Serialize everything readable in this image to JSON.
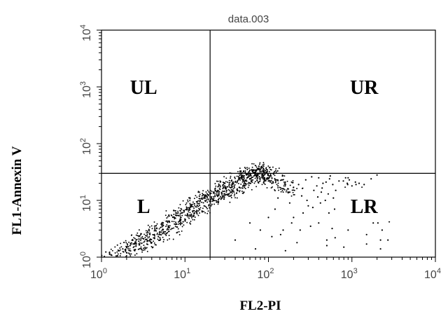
{
  "chart_data": {
    "type": "scatter",
    "title": "data.003",
    "xlabel": "FL2-PI",
    "ylabel": "FL1-Annexin V",
    "xscale": "log",
    "yscale": "log",
    "xlim": [
      1,
      10000
    ],
    "ylim": [
      1,
      10000
    ],
    "x_ticks": [
      {
        "base": "10",
        "exp": "0"
      },
      {
        "base": "10",
        "exp": "1"
      },
      {
        "base": "10",
        "exp": "2"
      },
      {
        "base": "10",
        "exp": "3"
      },
      {
        "base": "10",
        "exp": "4"
      }
    ],
    "y_ticks": [
      {
        "base": "10",
        "exp": "0"
      },
      {
        "base": "10",
        "exp": "1"
      },
      {
        "base": "10",
        "exp": "2"
      },
      {
        "base": "10",
        "exp": "3"
      },
      {
        "base": "10",
        "exp": "4"
      }
    ],
    "gates": {
      "x": 20,
      "y": 30
    },
    "quadrant_labels": [
      {
        "text": "UL",
        "x": 3.2,
        "y": 1000
      },
      {
        "text": "UR",
        "x": 1400,
        "y": 1000
      },
      {
        "text": "L",
        "x": 3.2,
        "y": 8
      },
      {
        "text": "LR",
        "x": 1400,
        "y": 8
      }
    ],
    "marker_color": "#000000",
    "grid": false,
    "series": [
      {
        "description": "dense diagonal cluster of events",
        "points": [
          [
            1.3,
            1.1
          ],
          [
            1.6,
            1.3
          ],
          [
            2,
            1.5
          ],
          [
            2.4,
            1.7
          ],
          [
            2.8,
            1.9
          ],
          [
            3.2,
            2.1
          ],
          [
            3.8,
            2.5
          ],
          [
            4.5,
            2.9
          ],
          [
            5.5,
            3.6
          ],
          [
            6.5,
            4.3
          ],
          [
            7.5,
            5
          ],
          [
            9,
            6
          ],
          [
            10.5,
            7
          ],
          [
            12,
            8
          ],
          [
            14,
            9.5
          ],
          [
            16,
            11
          ],
          [
            18,
            12
          ],
          [
            20,
            13
          ],
          [
            23,
            15
          ],
          [
            26,
            16
          ],
          [
            30,
            18
          ],
          [
            34,
            19
          ],
          [
            40,
            21
          ],
          [
            45,
            24
          ],
          [
            50,
            26
          ],
          [
            55,
            28
          ],
          [
            60,
            30
          ],
          [
            65,
            32
          ],
          [
            70,
            34
          ],
          [
            80,
            30
          ],
          [
            90,
            25
          ],
          [
            100,
            22
          ],
          [
            2,
            1.2
          ],
          [
            3,
            1.4
          ],
          [
            4,
            1.8
          ],
          [
            5,
            2.2
          ],
          [
            6,
            2.6
          ],
          [
            8,
            3.4
          ],
          [
            10,
            4.5
          ],
          [
            13,
            6
          ],
          [
            17,
            8
          ],
          [
            22,
            10
          ],
          [
            28,
            12
          ],
          [
            35,
            14
          ],
          [
            45,
            17
          ],
          [
            60,
            20
          ],
          [
            1.5,
            1.05
          ],
          [
            2.5,
            1.3
          ],
          [
            3.5,
            1.7
          ],
          [
            4.8,
            2.3
          ],
          [
            7,
            3.2
          ],
          [
            9.5,
            4.2
          ],
          [
            12.5,
            5.2
          ],
          [
            16,
            6.5
          ],
          [
            21,
            8.5
          ],
          [
            27,
            10.5
          ],
          [
            33,
            13
          ],
          [
            42,
            15.5
          ],
          [
            52,
            18
          ],
          [
            62,
            22
          ],
          [
            72,
            26
          ],
          [
            85,
            28
          ],
          [
            95,
            24
          ],
          [
            110,
            20
          ],
          [
            130,
            18
          ],
          [
            150,
            16
          ],
          [
            180,
            14
          ],
          [
            2.2,
            1.6
          ],
          [
            3.4,
            2.4
          ],
          [
            4.6,
            3.2
          ],
          [
            6.2,
            4.1
          ],
          [
            8.4,
            5.4
          ],
          [
            11,
            6.8
          ],
          [
            14,
            8.2
          ],
          [
            19,
            10.5
          ],
          [
            24,
            13
          ],
          [
            31,
            16
          ],
          [
            38,
            20
          ],
          [
            48,
            24
          ],
          [
            58,
            27
          ],
          [
            68,
            31
          ],
          [
            76,
            35
          ],
          [
            88,
            33
          ],
          [
            105,
            27
          ],
          [
            125,
            23
          ],
          [
            160,
            19
          ],
          [
            200,
            17
          ],
          [
            1.8,
            1.4
          ],
          [
            2.6,
            2
          ],
          [
            3.6,
            2.7
          ],
          [
            5.2,
            3.8
          ],
          [
            7.2,
            5.1
          ],
          [
            9.8,
            6.6
          ],
          [
            13,
            8.7
          ],
          [
            17.5,
            11
          ],
          [
            22,
            14
          ],
          [
            29,
            17
          ],
          [
            36,
            22
          ],
          [
            44,
            26
          ],
          [
            54,
            29
          ],
          [
            64,
            33
          ],
          [
            74,
            36
          ],
          [
            82,
            38
          ],
          [
            96,
            32
          ],
          [
            115,
            29
          ]
        ]
      },
      {
        "description": "scattered events",
        "points": [
          [
            150,
            3
          ],
          [
            200,
            5
          ],
          [
            300,
            8
          ],
          [
            400,
            4
          ],
          [
            500,
            2
          ],
          [
            700,
            6
          ],
          [
            900,
            3
          ],
          [
            1200,
            5
          ],
          [
            1500,
            2.5
          ],
          [
            1800,
            4
          ],
          [
            2000,
            9
          ],
          [
            2200,
            2
          ],
          [
            250,
            12
          ],
          [
            350,
            15
          ],
          [
            450,
            20
          ],
          [
            600,
            11
          ],
          [
            800,
            14
          ],
          [
            1000,
            18
          ],
          [
            1300,
            10
          ],
          [
            1600,
            13
          ],
          [
            2100,
            7
          ],
          [
            2300,
            3
          ],
          [
            400,
            25
          ],
          [
            550,
            27
          ],
          [
            700,
            22
          ],
          [
            900,
            25
          ],
          [
            1100,
            21
          ],
          [
            1400,
            19
          ],
          [
            1700,
            24
          ],
          [
            2000,
            28
          ],
          [
            120,
            7
          ],
          [
            180,
            9
          ],
          [
            260,
            6
          ],
          [
            320,
            3.5
          ],
          [
            420,
            9
          ],
          [
            520,
            13
          ],
          [
            620,
            7
          ],
          [
            750,
            10
          ],
          [
            950,
            8
          ],
          [
            1150,
            12
          ],
          [
            1350,
            6
          ],
          [
            1550,
            15
          ],
          [
            1750,
            9
          ],
          [
            1950,
            11
          ],
          [
            2150,
            14
          ],
          [
            2400,
            5
          ],
          [
            2500,
            8
          ],
          [
            2600,
            12
          ],
          [
            130,
            11
          ],
          [
            170,
            16
          ],
          [
            230,
            19
          ],
          [
            280,
            23
          ],
          [
            330,
            26
          ],
          [
            380,
            18
          ],
          [
            430,
            14
          ],
          [
            480,
            10
          ],
          [
            530,
            6
          ],
          [
            580,
            3.2
          ],
          [
            630,
            2.2
          ],
          [
            680,
            4.5
          ],
          [
            730,
            8.5
          ],
          [
            780,
            12.5
          ],
          [
            830,
            17
          ],
          [
            880,
            20
          ],
          [
            930,
            23
          ],
          [
            980,
            16
          ],
          [
            1050,
            11
          ],
          [
            1100,
            7
          ],
          [
            1250,
            9
          ],
          [
            1450,
            11
          ],
          [
            1650,
            8
          ],
          [
            1850,
            6
          ],
          [
            2050,
            4
          ],
          [
            2250,
            6.5
          ],
          [
            2450,
            10
          ],
          [
            140,
            2.5
          ],
          [
            190,
            4
          ],
          [
            240,
            3
          ],
          [
            290,
            10
          ],
          [
            340,
            7.5
          ],
          [
            390,
            11.5
          ],
          [
            440,
            16.5
          ],
          [
            490,
            21
          ],
          [
            540,
            24
          ],
          [
            590,
            19
          ],
          [
            640,
            15
          ],
          [
            690,
            12
          ],
          [
            740,
            16
          ],
          [
            790,
            22
          ],
          [
            840,
            25
          ],
          [
            890,
            19
          ],
          [
            940,
            13
          ],
          [
            990,
            9.5
          ],
          [
            1060,
            16
          ],
          [
            1120,
            19
          ],
          [
            1180,
            13
          ],
          [
            1220,
            20
          ],
          [
            1280,
            15
          ],
          [
            1320,
            17
          ],
          [
            2700,
            2
          ],
          [
            2800,
            4.2
          ],
          [
            2900,
            6.5
          ],
          [
            40,
            2
          ],
          [
            60,
            4
          ],
          [
            80,
            3
          ],
          [
            100,
            5
          ],
          [
            70,
            1.4
          ],
          [
            110,
            2.3
          ],
          [
            160,
            1.3
          ],
          [
            220,
            1.8
          ],
          [
            500,
            1.6
          ],
          [
            800,
            1.5
          ],
          [
            1500,
            1.7
          ],
          [
            2200,
            1.4
          ]
        ]
      }
    ]
  }
}
